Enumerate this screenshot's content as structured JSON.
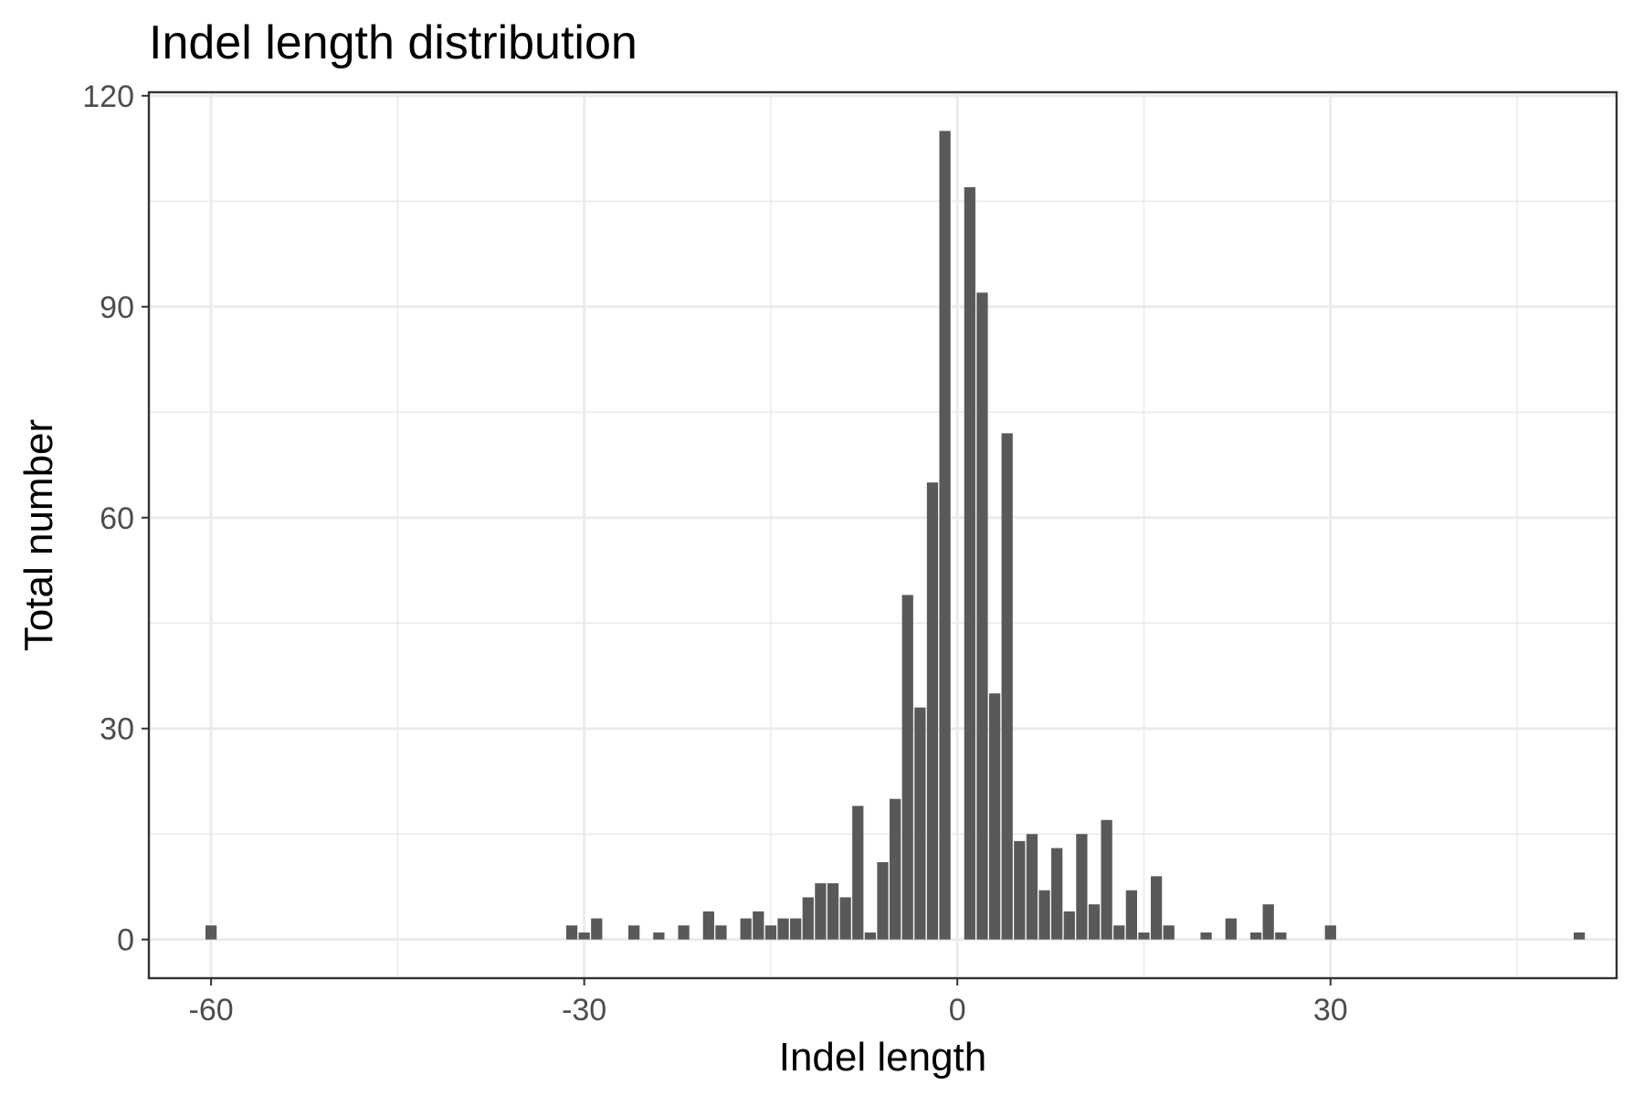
{
  "chart_data": {
    "type": "bar",
    "title": "Indel length distribution",
    "xlabel": "Indel length",
    "ylabel": "Total number",
    "xlim": [
      -65,
      53
    ],
    "ylim": [
      -5.5,
      120.5
    ],
    "x_ticks": [
      -60,
      -30,
      0,
      30
    ],
    "x_tick_labels": [
      "-60",
      "-30",
      "0",
      "30"
    ],
    "y_ticks": [
      0,
      30,
      60,
      90,
      120
    ],
    "y_tick_labels": [
      "0",
      "30",
      "60",
      "90",
      "120"
    ],
    "x_minor_ticks": [
      -45,
      -15,
      15,
      45
    ],
    "y_minor_ticks": [
      15,
      45,
      75,
      105
    ],
    "grid": true,
    "bar_color": "#595959",
    "x": [
      -60,
      -31,
      -30,
      -29,
      -26,
      -24,
      -22,
      -20,
      -19,
      -17,
      -16,
      -15,
      -14,
      -13,
      -12,
      -11,
      -10,
      -9,
      -8,
      -7,
      -6,
      -5,
      -4,
      -3,
      -2,
      -1,
      1,
      2,
      3,
      4,
      5,
      6,
      7,
      8,
      9,
      10,
      11,
      12,
      13,
      14,
      15,
      16,
      17,
      20,
      22,
      24,
      25,
      26,
      30,
      50
    ],
    "values": [
      2,
      2,
      1,
      3,
      2,
      1,
      2,
      4,
      2,
      3,
      4,
      2,
      3,
      3,
      6,
      8,
      8,
      6,
      19,
      1,
      11,
      20,
      49,
      33,
      65,
      115,
      107,
      92,
      35,
      72,
      14,
      15,
      7,
      13,
      4,
      15,
      5,
      17,
      2,
      7,
      1,
      9,
      2,
      1,
      3,
      1,
      5,
      1,
      2,
      1
    ]
  }
}
